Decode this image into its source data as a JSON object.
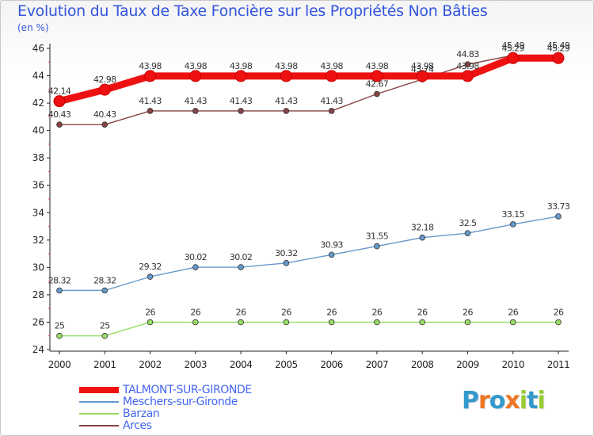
{
  "chart_data": {
    "type": "line",
    "title": "Evolution du Taux de Taxe Foncière sur les Propriétés Non Bâties",
    "ylabel": "(en %)",
    "xlabel": "",
    "x": [
      "2000",
      "2001",
      "2002",
      "2003",
      "2004",
      "2005",
      "2006",
      "2007",
      "2008",
      "2009",
      "2010",
      "2011"
    ],
    "ylim": [
      24,
      46
    ],
    "yticks": [
      24,
      26,
      28,
      30,
      32,
      34,
      36,
      38,
      40,
      42,
      44,
      46
    ],
    "grid": false,
    "legend_position": "bottom-left",
    "series": [
      {
        "name": "Barzan",
        "color": "#99dd66",
        "values": [
          25,
          25,
          26,
          26,
          26,
          26,
          26,
          26,
          26,
          26,
          26,
          26
        ],
        "labels": [
          "25",
          "25",
          "26",
          "26",
          "26",
          "26",
          "26",
          "26",
          "26",
          "26",
          "26",
          "26"
        ]
      },
      {
        "name": "Meschers-sur-Gironde",
        "color": "#6699cc",
        "values": [
          28.32,
          28.32,
          29.32,
          30.02,
          30.02,
          30.32,
          30.93,
          31.55,
          32.18,
          32.5,
          33.15,
          33.73
        ],
        "labels": [
          "28.32",
          "28.32",
          "29.32",
          "30.02",
          "30.02",
          "30.32",
          "30.93",
          "31.55",
          "32.18",
          "32.5",
          "33.15",
          "33.73"
        ]
      },
      {
        "name": "Arces",
        "color": "#884444",
        "values": [
          40.43,
          40.43,
          41.43,
          41.43,
          41.43,
          41.43,
          41.43,
          42.67,
          43.74,
          44.83,
          45.49,
          45.49
        ],
        "labels": [
          "40.43",
          "40.43",
          "41.43",
          "41.43",
          "41.43",
          "41.43",
          "41.43",
          "42.67",
          "43.74",
          "44.83",
          "45.49",
          "45.49"
        ]
      },
      {
        "name": "TALMONT-SUR-GIRONDE",
        "color": "#ee1111",
        "values": [
          42.14,
          42.98,
          43.98,
          43.98,
          43.98,
          43.98,
          43.98,
          43.98,
          43.98,
          43.98,
          45.29,
          45.29
        ],
        "labels": [
          "42.14",
          "42.98",
          "43.98",
          "43.98",
          "43.98",
          "43.98",
          "43.98",
          "43.98",
          "43.98",
          "43.98",
          "45.29",
          "45.29"
        ]
      }
    ]
  },
  "legend": [
    {
      "label": "TALMONT-SUR-GIRONDE",
      "color": "#ee1111"
    },
    {
      "label": "Meschers-sur-Gironde",
      "color": "#6699cc"
    },
    {
      "label": "Barzan",
      "color": "#99dd66"
    },
    {
      "label": "Arces",
      "color": "#884444"
    }
  ],
  "logo": {
    "letters": [
      "P",
      "r",
      "o",
      "x",
      "i",
      "t",
      "i"
    ],
    "colors": [
      "#3399cc",
      "#ee7722",
      "#3399cc",
      "#ee7722",
      "#99cc33",
      "#3399cc",
      "#99cc33"
    ]
  }
}
